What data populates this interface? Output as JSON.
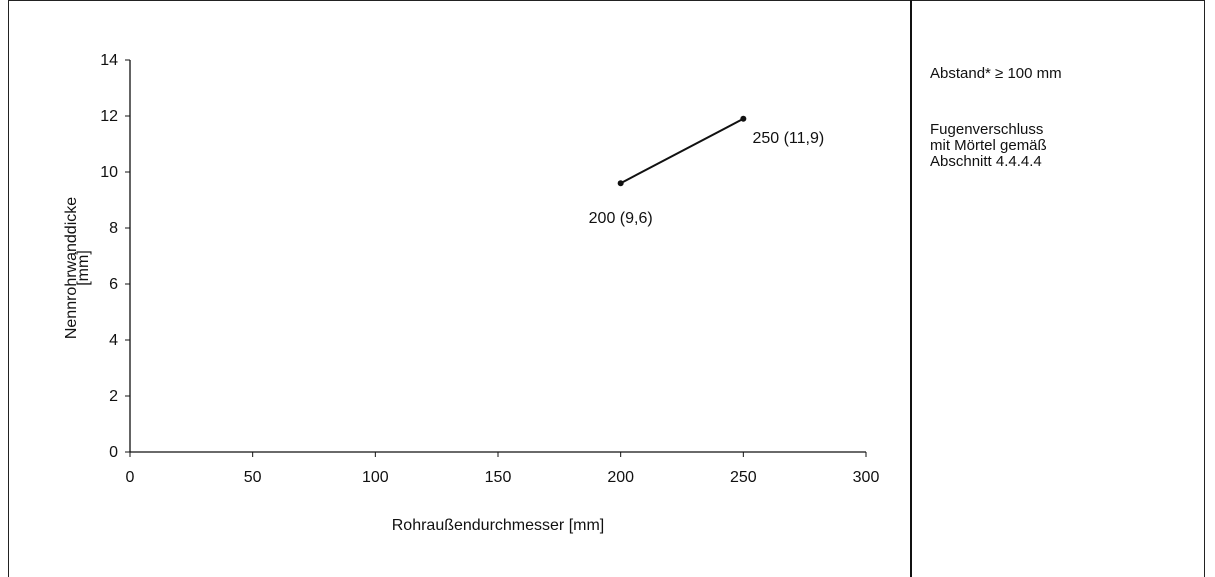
{
  "chart_data": {
    "type": "line",
    "title": "",
    "xlabel": "Rohraußendurchmesser [mm]",
    "ylabel_line1": "Nennrohrwanddicke",
    "ylabel_line2": "[mm]",
    "xlim": [
      0,
      300
    ],
    "ylim": [
      0,
      14
    ],
    "x_ticks": [
      0,
      50,
      100,
      150,
      200,
      250,
      300
    ],
    "y_ticks": [
      0,
      2,
      4,
      6,
      8,
      10,
      12,
      14
    ],
    "grid": false,
    "series": [
      {
        "points": [
          {
            "x": 200,
            "y": 9.6,
            "label": "200 (9,6)"
          },
          {
            "x": 250,
            "y": 11.9,
            "label": "250 (11,9)"
          }
        ]
      }
    ]
  },
  "notes": {
    "spacing": "Abstand* ≥ 100 mm",
    "joint": "Fugenverschluss\nmit Mörtel gemäß\nAbschnitt 4.4.4.4"
  }
}
